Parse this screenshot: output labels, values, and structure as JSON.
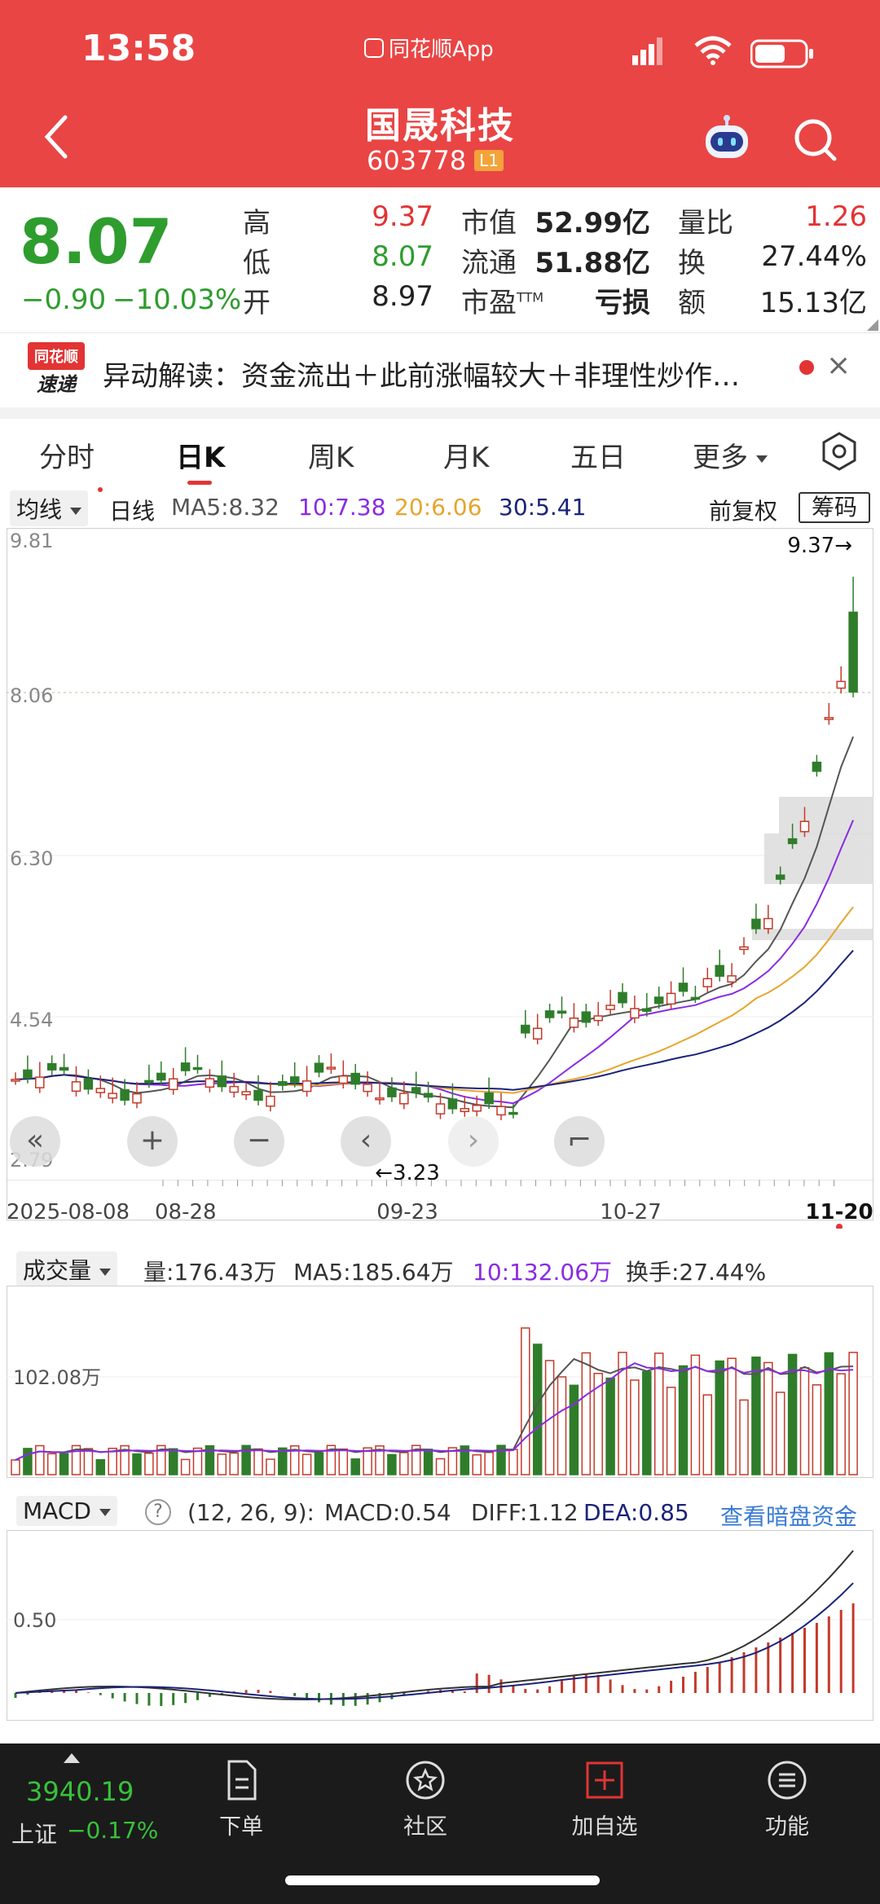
{
  "status_bar": {
    "time": "13:58",
    "app_label": "同花顺App"
  },
  "header": {
    "title": "国晟科技",
    "code": "603778",
    "level_badge": "L1"
  },
  "quote": {
    "price": "8.07",
    "change": "−0.90",
    "change_pct": "−10.03%",
    "fields": [
      {
        "label": "高",
        "value": "9.37",
        "color": "#e23434"
      },
      {
        "label": "低",
        "value": "8.07",
        "color": "#2e9d2e"
      },
      {
        "label": "开",
        "value": "8.97",
        "color": "#222222"
      },
      {
        "label": "市值",
        "value": "52.99亿",
        "color": "#222222"
      },
      {
        "label": "流通",
        "value": "51.88亿",
        "color": "#222222"
      },
      {
        "label": "市盈",
        "sup": "TTM",
        "value": "亏损",
        "color": "#222222"
      },
      {
        "label": "量比",
        "value": "1.26",
        "color": "#e23434"
      },
      {
        "label": "换",
        "value": "27.44%",
        "color": "#222222"
      },
      {
        "label": "额",
        "value": "15.13亿",
        "color": "#222222"
      }
    ]
  },
  "banner": {
    "logo_top": "同花顺",
    "logo_bottom": "速递",
    "text": "异动解读：资金流出＋此前涨幅较大＋非理性炒作…",
    "close_label": "×"
  },
  "tabs": [
    "分时",
    "日K",
    "周K",
    "月K",
    "五日",
    "更多"
  ],
  "active_tab": "日K",
  "kline": {
    "indicator_select": "均线",
    "period_label": "日线",
    "ma": [
      {
        "text": "MA5:8.32",
        "color": "#666666"
      },
      {
        "text": "10:7.38",
        "color": "#8a2be2"
      },
      {
        "text": "20:6.06",
        "color": "#e6a52c"
      },
      {
        "text": "30:5.41",
        "color": "#1b237a"
      }
    ],
    "adjust_label": "前复权",
    "chip_label": "筹码",
    "y_ticks": [
      "9.81",
      "8.06",
      "6.30",
      "4.54",
      "2.79"
    ],
    "high_marker": "9.37→",
    "low_marker": "←3.23",
    "dates": [
      "2025-08-08",
      "08-28",
      "09-23",
      "10-27",
      "11-20"
    ],
    "controls": [
      "«",
      "+",
      "−",
      "‹",
      "›",
      "⌐"
    ]
  },
  "volume": {
    "indicator_select": "成交量",
    "legend": [
      {
        "text": "量:176.43万",
        "color": "#333333"
      },
      {
        "text": "MA5:185.64万",
        "color": "#333333"
      },
      {
        "text": "10:132.06万",
        "color": "#8a2be2"
      },
      {
        "text": "换手:27.44%",
        "color": "#333333"
      }
    ],
    "y_tick": "102.08万"
  },
  "macd": {
    "indicator_select": "MACD",
    "help_icon": "?",
    "legend": [
      {
        "text": "(12, 26, 9):",
        "color": "#333333"
      },
      {
        "text": "MACD:0.54",
        "color": "#333333"
      },
      {
        "text": "DIFF:1.12",
        "color": "#333333"
      },
      {
        "text": "DEA:0.85",
        "color": "#1b237a"
      }
    ],
    "link": "查看暗盘资金",
    "y_tick": "0.50"
  },
  "bottom_bar": {
    "index_value": "3940.19",
    "index_name": "上证",
    "index_change": "−0.17%",
    "nav": [
      "下单",
      "社区",
      "加自选",
      "功能"
    ]
  }
}
